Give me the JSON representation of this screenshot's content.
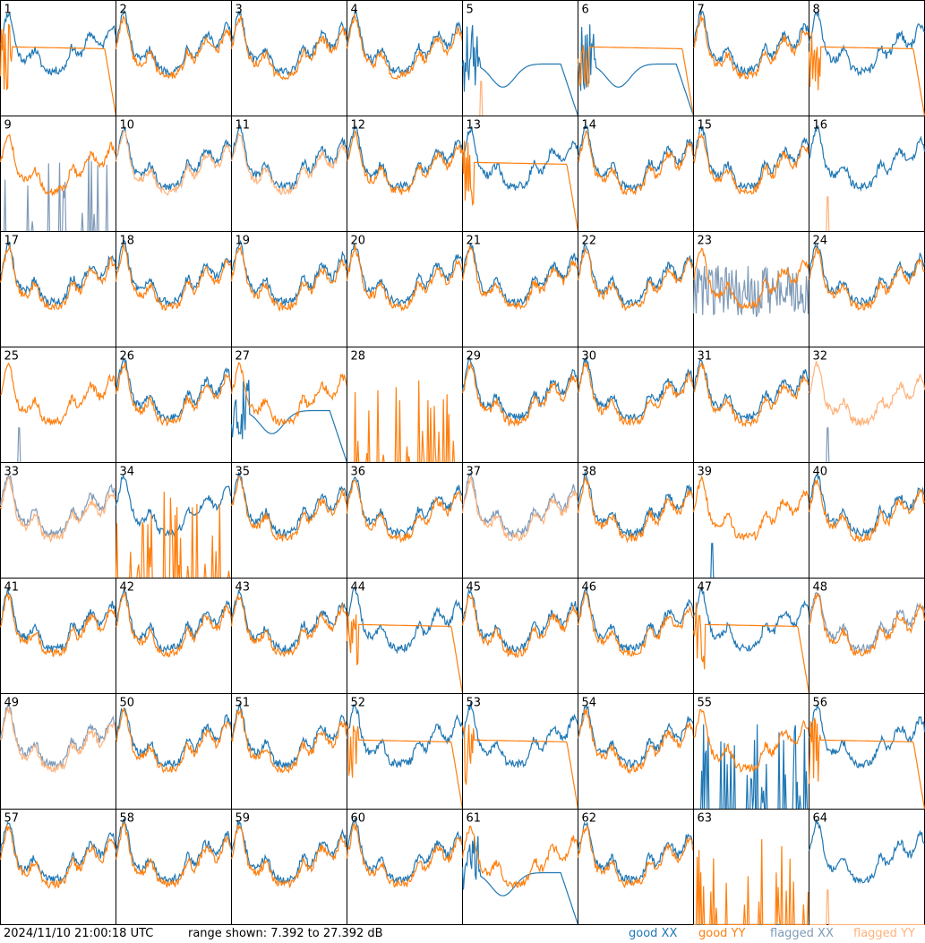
{
  "footer": {
    "timestamp": "2024/11/10 21:00:18 UTC",
    "range": "range shown: 7.392 to 27.392 dB",
    "legend": {
      "good_xx": "good XX",
      "good_yy": "good YY",
      "flagged_xx": "flagged XX",
      "flagged_yy": "flagged YY"
    }
  },
  "colors": {
    "good_xx": "#1f77b4",
    "good_yy": "#ff7f0e",
    "flagged_xx": "#7f9ab8",
    "flagged_yy": "#ffb27a"
  },
  "chart_data": {
    "type": "line",
    "ylim": [
      7.392,
      27.392
    ],
    "grid_rows": 8,
    "grid_cols": 8,
    "note_profiles": "shape keys: bp=bandpass, plat=plateau then roll-off, bowl=deep bowl then roll-off, spikes=sparse RFI spikes, spike1=single low spike, noisy=noisy bandpass, flatlow=flat zero",
    "panels": [
      {
        "id": "1",
        "xx": "bp",
        "yy": "plat",
        "xx_flag": false,
        "yy_flag": false
      },
      {
        "id": "2",
        "xx": "bp",
        "yy": "bp",
        "xx_flag": false,
        "yy_flag": false
      },
      {
        "id": "3",
        "xx": "bp",
        "yy": "bp",
        "xx_flag": false,
        "yy_flag": false
      },
      {
        "id": "4",
        "xx": "bp",
        "yy": "bp",
        "xx_flag": false,
        "yy_flag": false
      },
      {
        "id": "5",
        "xx": "bowl",
        "yy": "spike1",
        "xx_flag": false,
        "yy_flag": true
      },
      {
        "id": "6",
        "xx": "bowl",
        "yy": "plat",
        "xx_flag": false,
        "yy_flag": false
      },
      {
        "id": "7",
        "xx": "bp",
        "yy": "bp",
        "xx_flag": false,
        "yy_flag": false
      },
      {
        "id": "8",
        "xx": "bp",
        "yy": "plat",
        "xx_flag": false,
        "yy_flag": false
      },
      {
        "id": "9",
        "xx": "spikes",
        "yy": "bp",
        "xx_flag": true,
        "yy_flag": false
      },
      {
        "id": "10",
        "xx": "bp",
        "yy": "bp",
        "xx_flag": false,
        "yy_flag": true
      },
      {
        "id": "11",
        "xx": "bp",
        "yy": "bp",
        "xx_flag": false,
        "yy_flag": true
      },
      {
        "id": "12",
        "xx": "bp",
        "yy": "bp",
        "xx_flag": false,
        "yy_flag": false
      },
      {
        "id": "13",
        "xx": "bp",
        "yy": "plat",
        "xx_flag": false,
        "yy_flag": false
      },
      {
        "id": "14",
        "xx": "bp",
        "yy": "bp",
        "xx_flag": false,
        "yy_flag": false
      },
      {
        "id": "15",
        "xx": "bp",
        "yy": "bp",
        "xx_flag": false,
        "yy_flag": false
      },
      {
        "id": "16",
        "xx": "bp",
        "yy": "spike1",
        "xx_flag": false,
        "yy_flag": true
      },
      {
        "id": "17",
        "xx": "bp",
        "yy": "bp",
        "xx_flag": false,
        "yy_flag": false
      },
      {
        "id": "18",
        "xx": "bp",
        "yy": "bp",
        "xx_flag": false,
        "yy_flag": false
      },
      {
        "id": "19",
        "xx": "bp",
        "yy": "bp",
        "xx_flag": false,
        "yy_flag": false
      },
      {
        "id": "20",
        "xx": "bp",
        "yy": "bp",
        "xx_flag": false,
        "yy_flag": false
      },
      {
        "id": "21",
        "xx": "bp",
        "yy": "bp",
        "xx_flag": false,
        "yy_flag": false
      },
      {
        "id": "22",
        "xx": "bp",
        "yy": "bp",
        "xx_flag": false,
        "yy_flag": false
      },
      {
        "id": "23",
        "xx": "noisy",
        "yy": "bp",
        "xx_flag": true,
        "yy_flag": false
      },
      {
        "id": "24",
        "xx": "bp",
        "yy": "bp",
        "xx_flag": false,
        "yy_flag": false
      },
      {
        "id": "25",
        "xx": "spike1",
        "yy": "bp",
        "xx_flag": true,
        "yy_flag": false
      },
      {
        "id": "26",
        "xx": "bp",
        "yy": "bp",
        "xx_flag": false,
        "yy_flag": false
      },
      {
        "id": "27",
        "xx": "bowl",
        "yy": "bp",
        "xx_flag": false,
        "yy_flag": false
      },
      {
        "id": "28",
        "xx": "flatlow",
        "yy": "spikes",
        "xx_flag": false,
        "yy_flag": false
      },
      {
        "id": "29",
        "xx": "bp",
        "yy": "bp",
        "xx_flag": false,
        "yy_flag": false
      },
      {
        "id": "30",
        "xx": "bp",
        "yy": "bp",
        "xx_flag": false,
        "yy_flag": false
      },
      {
        "id": "31",
        "xx": "bp",
        "yy": "bp",
        "xx_flag": false,
        "yy_flag": false
      },
      {
        "id": "32",
        "xx": "spike1",
        "yy": "bp",
        "xx_flag": true,
        "yy_flag": true
      },
      {
        "id": "33",
        "xx": "bp",
        "yy": "bp",
        "xx_flag": true,
        "yy_flag": true
      },
      {
        "id": "34",
        "xx": "bp",
        "yy": "spikes",
        "xx_flag": false,
        "yy_flag": false
      },
      {
        "id": "35",
        "xx": "bp",
        "yy": "bp",
        "xx_flag": false,
        "yy_flag": false
      },
      {
        "id": "36",
        "xx": "bp",
        "yy": "bp",
        "xx_flag": false,
        "yy_flag": false
      },
      {
        "id": "37",
        "xx": "bp",
        "yy": "bp",
        "xx_flag": true,
        "yy_flag": true
      },
      {
        "id": "38",
        "xx": "bp",
        "yy": "bp",
        "xx_flag": false,
        "yy_flag": false
      },
      {
        "id": "39",
        "xx": "spike1",
        "yy": "bp",
        "xx_flag": false,
        "yy_flag": false
      },
      {
        "id": "40",
        "xx": "bp",
        "yy": "bp",
        "xx_flag": false,
        "yy_flag": false
      },
      {
        "id": "41",
        "xx": "bp",
        "yy": "bp",
        "xx_flag": false,
        "yy_flag": false
      },
      {
        "id": "42",
        "xx": "bp",
        "yy": "bp",
        "xx_flag": false,
        "yy_flag": false
      },
      {
        "id": "43",
        "xx": "bp",
        "yy": "bp",
        "xx_flag": false,
        "yy_flag": false
      },
      {
        "id": "44",
        "xx": "bp",
        "yy": "plat",
        "xx_flag": false,
        "yy_flag": false
      },
      {
        "id": "45",
        "xx": "bp",
        "yy": "bp",
        "xx_flag": false,
        "yy_flag": false
      },
      {
        "id": "46",
        "xx": "bp",
        "yy": "bp",
        "xx_flag": false,
        "yy_flag": false
      },
      {
        "id": "47",
        "xx": "bp",
        "yy": "plat",
        "xx_flag": false,
        "yy_flag": false
      },
      {
        "id": "48",
        "xx": "bp",
        "yy": "bp",
        "xx_flag": true,
        "yy_flag": false
      },
      {
        "id": "49",
        "xx": "bp",
        "yy": "bp",
        "xx_flag": true,
        "yy_flag": true
      },
      {
        "id": "50",
        "xx": "bp",
        "yy": "bp",
        "xx_flag": false,
        "yy_flag": false
      },
      {
        "id": "51",
        "xx": "bp",
        "yy": "bp",
        "xx_flag": false,
        "yy_flag": false
      },
      {
        "id": "52",
        "xx": "bp",
        "yy": "plat",
        "xx_flag": false,
        "yy_flag": false
      },
      {
        "id": "53",
        "xx": "bp",
        "yy": "plat",
        "xx_flag": false,
        "yy_flag": false
      },
      {
        "id": "54",
        "xx": "bp",
        "yy": "bp",
        "xx_flag": false,
        "yy_flag": false
      },
      {
        "id": "55",
        "xx": "spikes",
        "yy": "bp",
        "xx_flag": false,
        "yy_flag": false
      },
      {
        "id": "56",
        "xx": "bp",
        "yy": "plat",
        "xx_flag": false,
        "yy_flag": false
      },
      {
        "id": "57",
        "xx": "bp",
        "yy": "bp",
        "xx_flag": false,
        "yy_flag": false
      },
      {
        "id": "58",
        "xx": "bp",
        "yy": "bp",
        "xx_flag": false,
        "yy_flag": false
      },
      {
        "id": "59",
        "xx": "bp",
        "yy": "bp",
        "xx_flag": false,
        "yy_flag": false
      },
      {
        "id": "60",
        "xx": "bp",
        "yy": "bp",
        "xx_flag": false,
        "yy_flag": false
      },
      {
        "id": "61",
        "xx": "bowl",
        "yy": "bp",
        "xx_flag": false,
        "yy_flag": false
      },
      {
        "id": "62",
        "xx": "bp",
        "yy": "bp",
        "xx_flag": false,
        "yy_flag": false
      },
      {
        "id": "63",
        "xx": "flatlow",
        "yy": "spikes",
        "xx_flag": false,
        "yy_flag": false
      },
      {
        "id": "64",
        "xx": "bp",
        "yy": "spike1",
        "xx_flag": false,
        "yy_flag": true
      }
    ]
  }
}
